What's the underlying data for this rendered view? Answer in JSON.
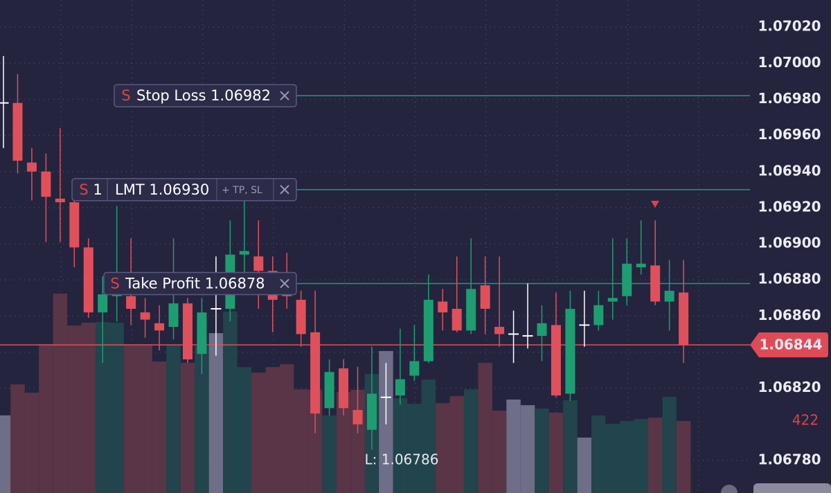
{
  "chart_data": {
    "type": "candlestick",
    "ylim": [
      1.06762,
      1.07035
    ],
    "yticks": [
      {
        "value": 1.0702,
        "label": "1.07020"
      },
      {
        "value": 1.07,
        "label": "1.07000"
      },
      {
        "value": 1.0698,
        "label": "1.06980"
      },
      {
        "value": 1.0696,
        "label": "1.06960"
      },
      {
        "value": 1.0694,
        "label": "1.06940"
      },
      {
        "value": 1.0692,
        "label": "1.06920"
      },
      {
        "value": 1.069,
        "label": "1.06900"
      },
      {
        "value": 1.0688,
        "label": "1.06880"
      },
      {
        "value": 1.0686,
        "label": "1.06860"
      },
      {
        "value": 1.0684,
        "label": "1.06840"
      },
      {
        "value": 1.0682,
        "label": "1.06820"
      },
      {
        "value": 1.0678,
        "label": "1.06780"
      }
    ],
    "grid": true,
    "up_color": "#1f9d72",
    "down_color": "#e0505a",
    "doji_color": "#ffffff",
    "volume_colors": {
      "up": "#22444c",
      "down": "#5a3447",
      "doji": "#6e6e88"
    },
    "volume_lim": [
      0,
      2890
    ],
    "candles": {
      "open": [
        1.06978,
        1.06978,
        1.06945,
        1.0694,
        1.06925,
        1.06923,
        1.06898,
        1.06862,
        1.06871,
        1.06871,
        1.06862,
        1.06856,
        1.06854,
        1.06867,
        1.06839,
        1.06864,
        1.06864,
        1.06894,
        1.06893,
        1.06885,
        1.06876,
        1.06869,
        1.06851,
        1.06809,
        1.06831,
        1.06808,
        1.06797,
        1.06815,
        1.06816,
        1.06827,
        1.06835,
        1.06868,
        1.06864,
        1.06852,
        1.06877,
        1.06854,
        1.0685,
        1.06849,
        1.06849,
        1.06855,
        1.06817,
        1.06855,
        1.06855,
        1.06868,
        1.06871,
        1.06887,
        1.06888,
        1.06868,
        1.06873
      ],
      "high": [
        1.07004,
        1.06994,
        1.06953,
        1.0695,
        1.06964,
        1.06927,
        1.06903,
        1.06882,
        1.06921,
        1.06903,
        1.0687,
        1.06866,
        1.06903,
        1.0687,
        1.0687,
        1.06893,
        1.06913,
        1.06924,
        1.06913,
        1.06893,
        1.06895,
        1.06874,
        1.06874,
        1.06836,
        1.06836,
        1.06832,
        1.06843,
        1.06834,
        1.06853,
        1.06855,
        1.06883,
        1.06875,
        1.06893,
        1.06903,
        1.06893,
        1.06893,
        1.06863,
        1.06878,
        1.06866,
        1.06873,
        1.06874,
        1.06874,
        1.06874,
        1.06903,
        1.06903,
        1.06913,
        1.06913,
        1.06891,
        1.06891
      ],
      "low": [
        1.06953,
        1.06939,
        1.06924,
        1.06901,
        1.06901,
        1.06887,
        1.06859,
        1.06834,
        1.06857,
        1.06855,
        1.06848,
        1.06841,
        1.06847,
        1.06834,
        1.06828,
        1.06838,
        1.06857,
        1.06883,
        1.06864,
        1.06851,
        1.06864,
        1.06843,
        1.06795,
        1.06805,
        1.06805,
        1.06795,
        1.06786,
        1.068,
        1.06811,
        1.06824,
        1.06834,
        1.06852,
        1.06851,
        1.0685,
        1.0685,
        1.06843,
        1.06834,
        1.06842,
        1.06835,
        1.06815,
        1.06813,
        1.06843,
        1.06852,
        1.06858,
        1.06866,
        1.06883,
        1.06866,
        1.06852,
        1.06834
      ],
      "close": [
        1.06978,
        1.06946,
        1.0694,
        1.06926,
        1.06923,
        1.06898,
        1.06862,
        1.06872,
        1.06874,
        1.06864,
        1.06858,
        1.06852,
        1.06867,
        1.06836,
        1.06862,
        1.06864,
        1.06894,
        1.06896,
        1.06885,
        1.06869,
        1.06871,
        1.0685,
        1.06806,
        1.06829,
        1.06809,
        1.068,
        1.06817,
        1.06815,
        1.06825,
        1.06835,
        1.06869,
        1.06862,
        1.06852,
        1.06875,
        1.06864,
        1.0685,
        1.0685,
        1.06849,
        1.06856,
        1.06816,
        1.06864,
        1.06855,
        1.06866,
        1.0687,
        1.06889,
        1.06889,
        1.06868,
        1.06874,
        1.06844
      ]
    },
    "volume": [
      455,
      637,
      588,
      872,
      1169,
      982,
      998,
      1002,
      998,
      872,
      872,
      771,
      868,
      763,
      860,
      937,
      1063,
      738,
      706,
      738,
      755,
      608,
      605,
      455,
      592,
      605,
      698,
      832,
      556,
      523,
      665,
      527,
      568,
      608,
      763,
      483,
      548,
      515,
      495,
      471,
      544,
      325,
      455,
      406,
      422,
      434,
      442,
      564,
      422
    ],
    "current_price": 1.06844,
    "low_annotation": "L: 1.06786",
    "orders": [
      {
        "side": "S",
        "label": "Stop Loss",
        "price": 1.06982,
        "price_label": "1.06982"
      },
      {
        "side": "S",
        "quantity": 1,
        "label": "LMT",
        "price": 1.0693,
        "price_label": "1.06930",
        "extra": "+ TP, SL"
      },
      {
        "side": "S",
        "label": "Take Profit",
        "price": 1.06878,
        "price_label": "1.06878"
      }
    ]
  }
}
